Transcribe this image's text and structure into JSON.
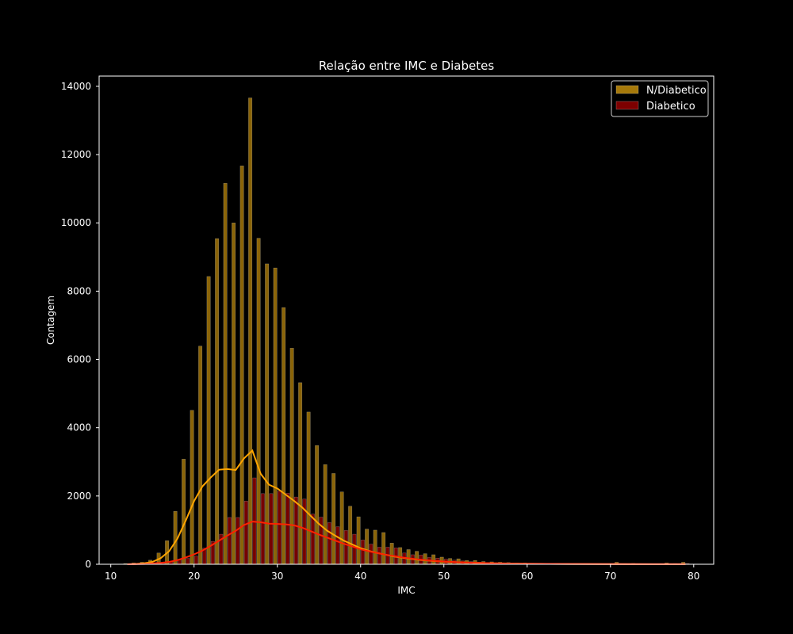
{
  "chart_data": {
    "type": "bar",
    "title": "Relação entre IMC e Diabetes",
    "xlabel": "IMC",
    "ylabel": "Contagem",
    "xlim": [
      8.6,
      82.4
    ],
    "ylim": [
      0,
      14300
    ],
    "xticks": [
      10,
      20,
      30,
      40,
      50,
      60,
      70,
      80
    ],
    "yticks": [
      0,
      2000,
      4000,
      6000,
      8000,
      10000,
      12000,
      14000
    ],
    "grid": false,
    "legend_position": "top-right",
    "bin_width": 1,
    "series": [
      {
        "name": "N/Diabetico",
        "color": "#b8860b",
        "kde_color": "#ffa500",
        "x": [
          12,
          13,
          14,
          15,
          16,
          17,
          18,
          19,
          20,
          21,
          22,
          23,
          24,
          25,
          26,
          27,
          28,
          29,
          30,
          31,
          32,
          33,
          34,
          35,
          36,
          37,
          38,
          39,
          40,
          41,
          42,
          43,
          44,
          45,
          46,
          47,
          48,
          49,
          50,
          51,
          52,
          53,
          54,
          55,
          56,
          57,
          58,
          59,
          60,
          61,
          62,
          63,
          64,
          65,
          66,
          67,
          68,
          69,
          70,
          71,
          72,
          73,
          74,
          75,
          76,
          77,
          78,
          79
        ],
        "values": [
          20,
          40,
          60,
          120,
          330,
          690,
          1550,
          3080,
          4510,
          6390,
          8430,
          9540,
          11160,
          10000,
          11670,
          13660,
          9550,
          8800,
          8680,
          7520,
          6330,
          5320,
          4460,
          3480,
          2920,
          2660,
          2120,
          1700,
          1390,
          1030,
          1000,
          930,
          620,
          490,
          430,
          380,
          310,
          280,
          210,
          170,
          160,
          110,
          110,
          80,
          70,
          60,
          50,
          40,
          40,
          30,
          30,
          25,
          25,
          20,
          20,
          20,
          15,
          15,
          15,
          60,
          20,
          25,
          10,
          10,
          10,
          40,
          20,
          60
        ],
        "kde": [
          [
            12,
            0
          ],
          [
            13,
            10
          ],
          [
            14,
            30
          ],
          [
            15,
            70
          ],
          [
            16,
            180
          ],
          [
            17,
            380
          ],
          [
            18,
            750
          ],
          [
            19,
            1280
          ],
          [
            20,
            1850
          ],
          [
            21,
            2280
          ],
          [
            22,
            2540
          ],
          [
            23,
            2770
          ],
          [
            24,
            2790
          ],
          [
            25,
            2760
          ],
          [
            26,
            3100
          ],
          [
            27,
            3330
          ],
          [
            28,
            2650
          ],
          [
            29,
            2330
          ],
          [
            30,
            2220
          ],
          [
            31,
            2040
          ],
          [
            32,
            1860
          ],
          [
            33,
            1660
          ],
          [
            34,
            1420
          ],
          [
            35,
            1180
          ],
          [
            36,
            980
          ],
          [
            37,
            830
          ],
          [
            38,
            690
          ],
          [
            39,
            580
          ],
          [
            40,
            470
          ],
          [
            41,
            390
          ],
          [
            42,
            330
          ],
          [
            43,
            280
          ],
          [
            44,
            230
          ],
          [
            45,
            190
          ],
          [
            46,
            160
          ],
          [
            47,
            130
          ],
          [
            48,
            110
          ],
          [
            49,
            90
          ],
          [
            50,
            75
          ],
          [
            52,
            55
          ],
          [
            54,
            40
          ],
          [
            56,
            30
          ],
          [
            58,
            22
          ],
          [
            60,
            15
          ],
          [
            65,
            8
          ],
          [
            70,
            5
          ],
          [
            75,
            3
          ],
          [
            79,
            2
          ]
        ]
      },
      {
        "name": "Diabetico",
        "color": "#8b0000",
        "kde_color": "#ff2200",
        "x": [
          12,
          13,
          14,
          15,
          16,
          17,
          18,
          19,
          20,
          21,
          22,
          23,
          24,
          25,
          26,
          27,
          28,
          29,
          30,
          31,
          32,
          33,
          34,
          35,
          36,
          37,
          38,
          39,
          40,
          41,
          42,
          43,
          44,
          45,
          46,
          47,
          48,
          49,
          50,
          51,
          52,
          53,
          54,
          55,
          56,
          57,
          58,
          59,
          60,
          61,
          62,
          63,
          64,
          65,
          66,
          67,
          68,
          69,
          70,
          71,
          72,
          73,
          74,
          75,
          76,
          77,
          78,
          79
        ],
        "values": [
          5,
          10,
          20,
          30,
          40,
          70,
          130,
          170,
          240,
          470,
          670,
          880,
          1370,
          1370,
          1850,
          2530,
          2070,
          2070,
          2140,
          2080,
          1970,
          1910,
          1470,
          1380,
          1220,
          1100,
          990,
          880,
          710,
          590,
          500,
          500,
          480,
          330,
          280,
          270,
          200,
          180,
          150,
          120,
          100,
          80,
          60,
          50,
          40,
          30,
          30,
          25,
          20,
          15,
          15,
          10,
          10,
          10,
          10,
          10,
          10,
          5,
          5,
          20,
          5,
          10,
          5,
          5,
          5,
          15,
          5,
          20
        ],
        "kde": [
          [
            12,
            0
          ],
          [
            14,
            10
          ],
          [
            16,
            40
          ],
          [
            17,
            70
          ],
          [
            18,
            120
          ],
          [
            19,
            200
          ],
          [
            20,
            290
          ],
          [
            21,
            400
          ],
          [
            22,
            540
          ],
          [
            23,
            690
          ],
          [
            24,
            840
          ],
          [
            25,
            980
          ],
          [
            26,
            1150
          ],
          [
            27,
            1250
          ],
          [
            28,
            1230
          ],
          [
            29,
            1190
          ],
          [
            30,
            1180
          ],
          [
            31,
            1170
          ],
          [
            32,
            1140
          ],
          [
            33,
            1070
          ],
          [
            34,
            970
          ],
          [
            35,
            870
          ],
          [
            36,
            780
          ],
          [
            37,
            690
          ],
          [
            38,
            600
          ],
          [
            39,
            520
          ],
          [
            40,
            440
          ],
          [
            41,
            380
          ],
          [
            42,
            330
          ],
          [
            43,
            280
          ],
          [
            44,
            240
          ],
          [
            45,
            200
          ],
          [
            46,
            170
          ],
          [
            47,
            140
          ],
          [
            48,
            115
          ],
          [
            49,
            95
          ],
          [
            50,
            80
          ],
          [
            52,
            55
          ],
          [
            54,
            40
          ],
          [
            56,
            28
          ],
          [
            58,
            20
          ],
          [
            60,
            14
          ],
          [
            65,
            8
          ],
          [
            70,
            5
          ],
          [
            75,
            3
          ],
          [
            79,
            2
          ]
        ]
      }
    ]
  }
}
